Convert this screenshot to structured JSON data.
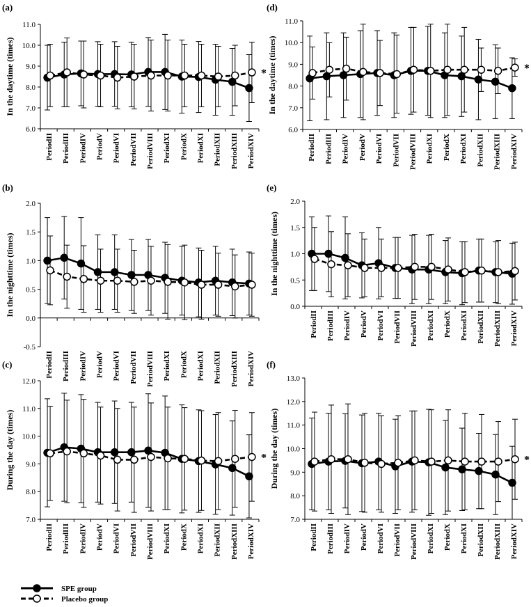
{
  "colors": {
    "spe": "#000000",
    "placebo": "#000000",
    "axis": "#000000",
    "background": "#ffffff"
  },
  "legend": {
    "spe": "SPE group",
    "placebo": "Placebo group"
  },
  "chart_data": [
    {
      "panel": "(a)",
      "type": "line",
      "ylabel": "In the daytime (times)",
      "ylim": [
        6.0,
        11.0
      ],
      "ystep": 1.0,
      "yticks": [
        "6.0",
        "7.0",
        "8.0",
        "9.0",
        "10.0",
        "11.0"
      ],
      "categories": [
        "PeriodII",
        "PeriodIII",
        "PeriodIV",
        "PeriodV",
        "PeriodVI",
        "PeriodVII",
        "PeriodVIII",
        "PeriodXI",
        "PeriodX",
        "PeriodXI",
        "PeriodXII",
        "PeriodXIII",
        "PeriodXIV"
      ],
      "significance": "*",
      "series": [
        {
          "name": "SPE group",
          "marker": "filled",
          "line": "solid",
          "values": [
            8.45,
            8.6,
            8.65,
            8.62,
            8.62,
            8.6,
            8.72,
            8.72,
            8.5,
            8.48,
            8.35,
            8.25,
            7.95
          ],
          "err": [
            1.55,
            1.55,
            1.55,
            1.55,
            1.55,
            1.55,
            1.65,
            1.8,
            1.75,
            1.7,
            1.7,
            1.6,
            1.6
          ]
        },
        {
          "name": "Placebo group",
          "marker": "open",
          "line": "dashed",
          "values": [
            8.55,
            8.7,
            8.6,
            8.55,
            8.45,
            8.5,
            8.55,
            8.55,
            8.55,
            8.55,
            8.5,
            8.55,
            8.7
          ],
          "err": [
            1.5,
            1.65,
            1.6,
            1.5,
            1.5,
            1.55,
            1.7,
            1.7,
            1.5,
            1.5,
            1.45,
            1.45,
            1.45
          ]
        }
      ]
    },
    {
      "panel": "(d)",
      "type": "line",
      "ylabel": "In the daytime (times)",
      "ylim": [
        6.0,
        11.0
      ],
      "ystep": 1.0,
      "yticks": [
        "6.0",
        "7.0",
        "8.0",
        "9.0",
        "10.0",
        "11.0"
      ],
      "categories": [
        "PeriodII",
        "PeriodIII",
        "PeriodIV",
        "PeriodV",
        "PeriodVI",
        "PeriodVII",
        "PeriodVIII",
        "PeriodXI",
        "PeriodX",
        "PeriodXI",
        "PeriodXII",
        "PeriodXIII",
        "PeriodXIV"
      ],
      "significance": "*",
      "series": [
        {
          "name": "SPE group",
          "marker": "filled",
          "line": "solid",
          "values": [
            8.35,
            8.45,
            8.5,
            8.55,
            8.6,
            8.5,
            8.7,
            8.7,
            8.5,
            8.45,
            8.3,
            8.2,
            7.9
          ],
          "err": [
            1.95,
            2.0,
            1.95,
            2.0,
            1.95,
            1.95,
            2.0,
            2.05,
            1.95,
            1.85,
            1.85,
            1.7,
            1.4
          ]
        },
        {
          "name": "Placebo group",
          "marker": "open",
          "line": "dashed",
          "values": [
            8.6,
            8.75,
            8.8,
            8.65,
            8.6,
            8.55,
            8.75,
            8.7,
            8.75,
            8.75,
            8.75,
            8.7,
            8.85
          ],
          "err": [
            1.2,
            1.25,
            1.45,
            2.2,
            1.5,
            1.8,
            1.95,
            2.15,
            2.1,
            1.95,
            1.0,
            1.05,
            0.4
          ]
        }
      ]
    },
    {
      "panel": "(b)",
      "type": "line",
      "ylabel": "In the nighttime (times)",
      "ylim": [
        -0.5,
        2.0
      ],
      "ystep": 0.5,
      "yticks": [
        "-0.5",
        "0.0",
        "0.5",
        "1.0",
        "1.5",
        "2.0"
      ],
      "categories": [
        "PeriodII",
        "PeriodIII",
        "PeriodIV",
        "PeriodV",
        "PeriodVI",
        "PeriodVII",
        "PeriodVIII",
        "PeriodXI",
        "PeriodX",
        "PeriodXI",
        "PeriodXII",
        "PeriodXIII",
        "PeriodXIV"
      ],
      "significance": "",
      "series": [
        {
          "name": "SPE group",
          "marker": "filled",
          "line": "solid",
          "values": [
            1.0,
            1.05,
            0.95,
            0.8,
            0.8,
            0.75,
            0.75,
            0.7,
            0.65,
            0.62,
            0.65,
            0.62,
            0.6
          ],
          "err": [
            0.75,
            0.72,
            0.8,
            0.65,
            0.65,
            0.62,
            0.62,
            0.62,
            0.6,
            0.6,
            0.6,
            0.58,
            0.55
          ]
        },
        {
          "name": "Placebo group",
          "marker": "open",
          "line": "dashed",
          "values": [
            0.83,
            0.72,
            0.68,
            0.65,
            0.65,
            0.63,
            0.65,
            0.63,
            0.62,
            0.58,
            0.58,
            0.55,
            0.58
          ],
          "err": [
            0.6,
            0.55,
            0.58,
            0.55,
            0.55,
            0.55,
            0.6,
            0.65,
            0.65,
            0.6,
            0.55,
            0.55,
            0.55
          ]
        }
      ]
    },
    {
      "panel": "(e)",
      "type": "line",
      "ylabel": "In the nighttime (times)",
      "ylim": [
        0.0,
        2.0
      ],
      "ystep": 0.5,
      "yticks": [
        "0.0",
        "0.5",
        "1.0",
        "1.5",
        "2.0"
      ],
      "categories": [
        "PeriodII",
        "PeriodIII",
        "PeriodIV",
        "PeriodV",
        "PeriodVI",
        "PeriodVII",
        "PeriodVIII",
        "PeriodXI",
        "PeriodX",
        "PeriodXI",
        "PeriodXII",
        "PeriodXIII",
        "PeriodXIV"
      ],
      "significance": "",
      "series": [
        {
          "name": "SPE group",
          "marker": "filled",
          "line": "solid",
          "values": [
            1.0,
            1.0,
            0.92,
            0.78,
            0.82,
            0.73,
            0.7,
            0.7,
            0.65,
            0.63,
            0.68,
            0.65,
            0.62
          ],
          "err": [
            0.7,
            0.72,
            0.78,
            0.62,
            0.68,
            0.58,
            0.65,
            0.65,
            0.6,
            0.6,
            0.6,
            0.58,
            0.58
          ]
        },
        {
          "name": "Placebo group",
          "marker": "open",
          "line": "dashed",
          "values": [
            0.9,
            0.8,
            0.78,
            0.73,
            0.73,
            0.73,
            0.75,
            0.75,
            0.7,
            0.65,
            0.68,
            0.65,
            0.67
          ],
          "err": [
            0.6,
            0.62,
            0.6,
            0.55,
            0.55,
            0.58,
            0.62,
            0.62,
            0.6,
            0.58,
            0.6,
            0.6,
            0.55
          ]
        }
      ]
    },
    {
      "panel": "(c)",
      "type": "line",
      "ylabel": "During the day (times)",
      "ylim": [
        7.0,
        12.0
      ],
      "ystep": 1.0,
      "yticks": [
        "7.0",
        "8.0",
        "9.0",
        "10.0",
        "11.0",
        "12.0"
      ],
      "categories": [
        "PeriodII",
        "PeriodIII",
        "PeriodIV",
        "PeriodV",
        "PeriodVI",
        "PeriodVII",
        "PeriodVIII",
        "PeriodXI",
        "PeriodX",
        "PeriodXI",
        "PeriodXII",
        "PeriodXIII",
        "PeriodXIV"
      ],
      "significance": "*",
      "series": [
        {
          "name": "SPE group",
          "marker": "filled",
          "line": "solid",
          "values": [
            9.4,
            9.6,
            9.55,
            9.42,
            9.42,
            9.42,
            9.48,
            9.4,
            9.18,
            9.1,
            8.98,
            8.85,
            8.55
          ],
          "err": [
            1.95,
            1.95,
            1.95,
            1.8,
            1.85,
            1.8,
            2.05,
            2.05,
            1.95,
            1.85,
            1.8,
            1.7,
            1.5
          ]
        },
        {
          "name": "Placebo group",
          "marker": "open",
          "line": "dashed",
          "values": [
            9.38,
            9.45,
            9.38,
            9.3,
            9.15,
            9.15,
            9.25,
            9.2,
            9.18,
            9.12,
            9.1,
            9.18,
            9.25
          ],
          "err": [
            1.7,
            1.85,
            1.95,
            1.75,
            1.85,
            1.9,
            1.95,
            1.85,
            1.85,
            1.8,
            1.75,
            1.75,
            1.6
          ]
        }
      ]
    },
    {
      "panel": "(f)",
      "type": "line",
      "ylabel": "During the day (times)",
      "ylim": [
        7.0,
        13.0
      ],
      "ystep": 1.0,
      "yticks": [
        "7.0",
        "8.0",
        "9.0",
        "10.0",
        "11.0",
        "12.0",
        "13.0"
      ],
      "categories": [
        "PeriodII",
        "PeriodIII",
        "PeriodIV",
        "PeriodV",
        "PeriodVI",
        "PeriodVII",
        "PeriodVIII",
        "PeriodXI",
        "PeriodX",
        "PeriodXI",
        "PeriodXII",
        "PeriodXIII",
        "PeriodXIV"
      ],
      "significance": "*",
      "series": [
        {
          "name": "SPE group",
          "marker": "filled",
          "line": "solid",
          "values": [
            9.35,
            9.45,
            9.48,
            9.38,
            9.45,
            9.25,
            9.45,
            9.42,
            9.2,
            9.12,
            9.05,
            8.9,
            8.55
          ],
          "err": [
            1.95,
            2.05,
            2.0,
            2.05,
            2.05,
            2.0,
            2.15,
            2.25,
            2.0,
            1.75,
            1.6,
            1.7,
            1.55
          ]
        },
        {
          "name": "Placebo group",
          "marker": "open",
          "line": "dashed",
          "values": [
            9.45,
            9.55,
            9.55,
            9.4,
            9.35,
            9.4,
            9.5,
            9.45,
            9.5,
            9.45,
            9.45,
            9.45,
            9.55
          ],
          "err": [
            2.1,
            2.3,
            2.35,
            2.1,
            2.05,
            2.0,
            2.1,
            2.2,
            2.15,
            2.05,
            2.0,
            1.7,
            1.7
          ]
        }
      ]
    }
  ]
}
